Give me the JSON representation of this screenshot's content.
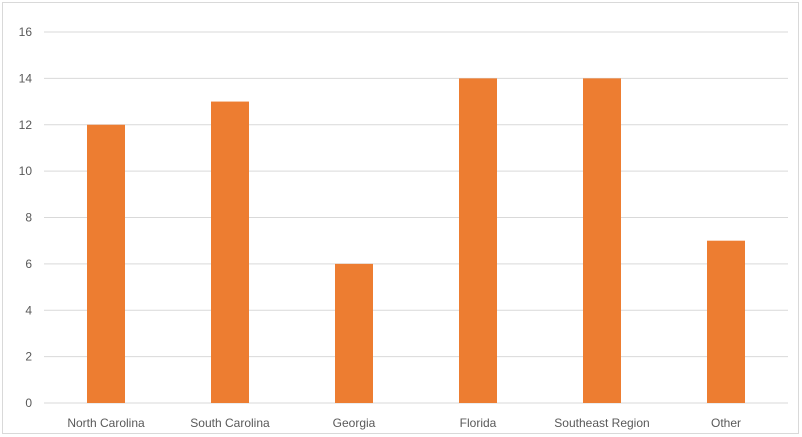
{
  "chart_data": {
    "type": "bar",
    "categories": [
      "North Carolina",
      "South Carolina",
      "Georgia",
      "Florida",
      "Southeast Region",
      "Other"
    ],
    "values": [
      12,
      13,
      6,
      14,
      14,
      7
    ],
    "yticks": [
      "0",
      "2",
      "4",
      "6",
      "8",
      "10",
      "12",
      "14",
      "16"
    ],
    "ylim": [
      0,
      16
    ],
    "grid": true,
    "legend": "none",
    "colors": {
      "bar": "#ed7d31",
      "grid": "#d9d9d9",
      "text": "#595959"
    }
  }
}
